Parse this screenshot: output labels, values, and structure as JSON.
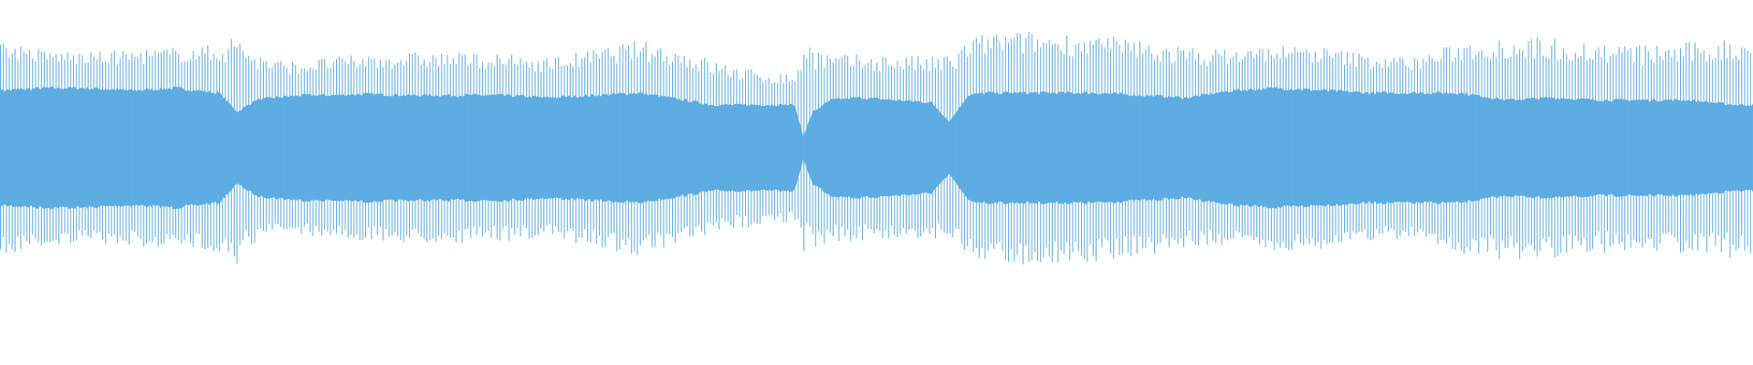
{
  "chart_data": {
    "type": "area",
    "title": "",
    "xlabel": "",
    "ylabel": "",
    "x": [
      0,
      48,
      96,
      144,
      192,
      240,
      260,
      280,
      300,
      330,
      360,
      400,
      450,
      500,
      550,
      600,
      650,
      700,
      750,
      780,
      810,
      840,
      870,
      880,
      890,
      910,
      940,
      980,
      1020,
      1040,
      1060,
      1080,
      1120,
      1160,
      1200,
      1250,
      1300,
      1350,
      1400,
      1450,
      1500,
      1550,
      1600,
      1650,
      1700,
      1750,
      1800,
      1850,
      1900,
      1920
    ],
    "peak_amplitude": [
      0.88,
      0.8,
      0.78,
      0.8,
      0.82,
      0.84,
      0.95,
      0.78,
      0.72,
      0.7,
      0.74,
      0.76,
      0.78,
      0.78,
      0.76,
      0.74,
      0.8,
      0.88,
      0.8,
      0.72,
      0.66,
      0.62,
      0.6,
      0.9,
      0.86,
      0.76,
      0.76,
      0.76,
      0.74,
      0.78,
      0.88,
      0.94,
      0.95,
      0.94,
      0.92,
      0.88,
      0.82,
      0.8,
      0.84,
      0.82,
      0.76,
      0.74,
      0.86,
      0.92,
      0.9,
      0.86,
      0.84,
      0.86,
      0.9,
      0.88
    ],
    "core_amplitude": [
      0.48,
      0.5,
      0.5,
      0.48,
      0.5,
      0.46,
      0.3,
      0.4,
      0.42,
      0.44,
      0.44,
      0.45,
      0.44,
      0.44,
      0.44,
      0.42,
      0.44,
      0.46,
      0.4,
      0.36,
      0.36,
      0.36,
      0.36,
      0.1,
      0.3,
      0.4,
      0.42,
      0.4,
      0.38,
      0.22,
      0.44,
      0.46,
      0.46,
      0.46,
      0.46,
      0.44,
      0.42,
      0.48,
      0.5,
      0.48,
      0.46,
      0.46,
      0.46,
      0.4,
      0.42,
      0.4,
      0.4,
      0.4,
      0.36,
      0.36
    ],
    "ylim": [
      -1,
      1
    ],
    "grid": false,
    "colors": {
      "waveform": "#5dace2",
      "background": "#ffffff"
    }
  }
}
